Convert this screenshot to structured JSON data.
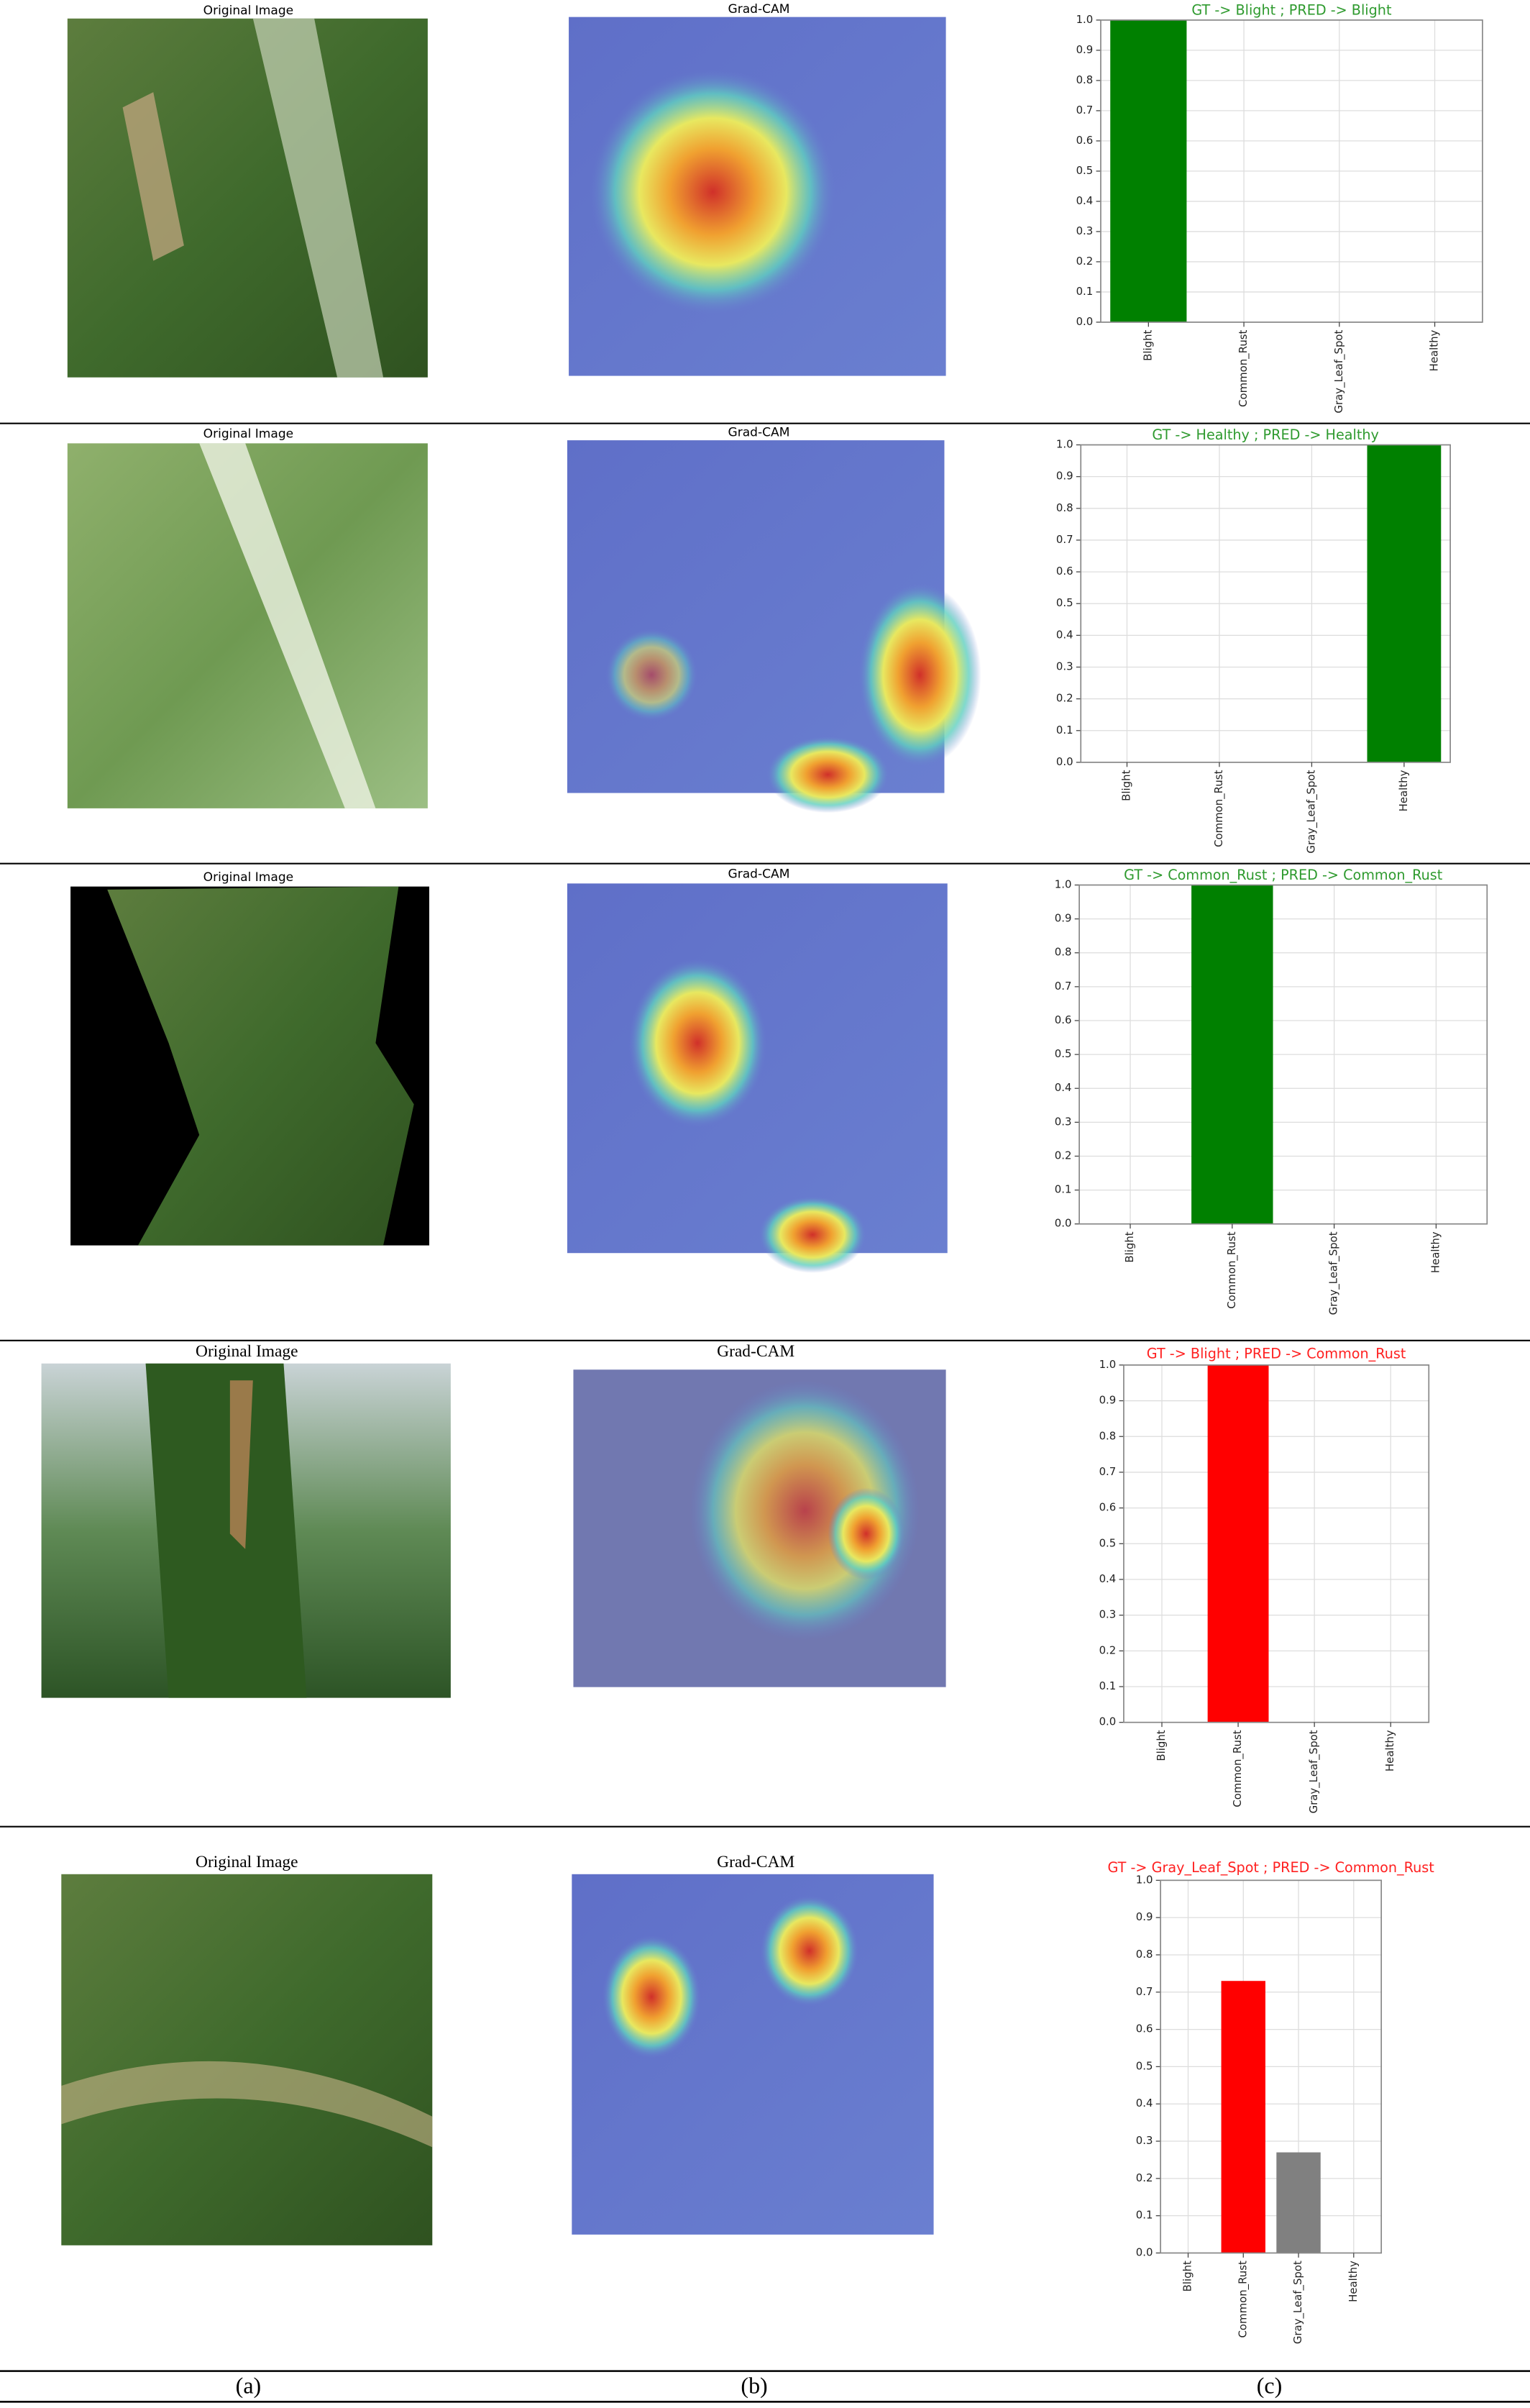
{
  "panels": [
    {
      "image_title": "Original Image",
      "cam_title": "Grad-CAM"
    },
    {
      "image_title": "Original Image",
      "cam_title": "Grad-CAM"
    },
    {
      "image_title": "Original Image",
      "cam_title": "Grad-CAM"
    },
    {
      "image_title": "Original Image",
      "cam_title": "Grad-CAM"
    },
    {
      "image_title": "Original Image",
      "cam_title": "Grad-CAM"
    }
  ],
  "captions": [
    "(a)",
    "(b)",
    "(c)"
  ],
  "chart_data": [
    {
      "type": "bar",
      "title": "GT -> Blight ; PRED -> Blight",
      "title_color": "#2e9a2e",
      "categories": [
        "Blight",
        "Common_Rust",
        "Gray_Leaf_Spot",
        "Healthy"
      ],
      "values": [
        1.0,
        0,
        0,
        0
      ],
      "colors": [
        "#008000",
        "#008000",
        "#008000",
        "#008000"
      ],
      "ylim": [
        0,
        1.0
      ],
      "yticks": [
        {
          "value": 0,
          "label": "0.0"
        },
        0.1,
        0.2,
        0.3,
        0.4,
        0.5,
        0.6,
        0.7,
        0.8,
        0.9,
        {
          "value": 1,
          "label": "1.0"
        }
      ],
      "grid": true
    },
    {
      "type": "bar",
      "title": "GT -> Healthy ; PRED -> Healthy",
      "title_color": "#2e9a2e",
      "categories": [
        "Blight",
        "Common_Rust",
        "Gray_Leaf_Spot",
        "Healthy"
      ],
      "values": [
        0,
        0,
        0,
        1.0
      ],
      "colors": [
        "#008000",
        "#008000",
        "#008000",
        "#008000"
      ],
      "ylim": [
        0,
        1.0
      ],
      "yticks": [
        {
          "value": 0,
          "label": "0.0"
        },
        0.1,
        0.2,
        0.3,
        0.4,
        0.5,
        0.6,
        0.7,
        0.8,
        0.9,
        {
          "value": 1,
          "label": "1.0"
        }
      ],
      "grid": true
    },
    {
      "type": "bar",
      "title": "GT -> Common_Rust ; PRED -> Common_Rust",
      "title_color": "#2e9a2e",
      "categories": [
        "Blight",
        "Common_Rust",
        "Gray_Leaf_Spot",
        "Healthy"
      ],
      "values": [
        0,
        1.0,
        0,
        0
      ],
      "colors": [
        "#008000",
        "#008000",
        "#008000",
        "#008000"
      ],
      "ylim": [
        0,
        1.0
      ],
      "yticks": [
        {
          "value": 0,
          "label": "0.0"
        },
        0.1,
        0.2,
        0.3,
        0.4,
        0.5,
        0.6,
        0.7,
        0.8,
        0.9,
        {
          "value": 1,
          "label": "1.0"
        }
      ],
      "grid": true
    },
    {
      "type": "bar",
      "title": "GT -> Blight ; PRED -> Common_Rust",
      "title_color": "#ff2020",
      "categories": [
        "Blight",
        "Common_Rust",
        "Gray_Leaf_Spot",
        "Healthy"
      ],
      "values": [
        0,
        1.0,
        0,
        0
      ],
      "colors": [
        "#ff0000",
        "#ff0000",
        "#ff0000",
        "#ff0000"
      ],
      "ylim": [
        0,
        1.0
      ],
      "yticks": [
        {
          "value": 0,
          "label": "0.0"
        },
        0.1,
        0.2,
        0.3,
        0.4,
        0.5,
        0.6,
        0.7,
        0.8,
        0.9,
        {
          "value": 1,
          "label": "1.0"
        }
      ],
      "grid": true
    },
    {
      "type": "bar",
      "title": "GT -> Gray_Leaf_Spot ; PRED -> Common_Rust",
      "title_color": "#ff2020",
      "categories": [
        "Blight",
        "Common_Rust",
        "Gray_Leaf_Spot",
        "Healthy"
      ],
      "values": [
        0,
        0.73,
        0.27,
        0
      ],
      "colors": [
        "#ff0000",
        "#ff0000",
        "#808080",
        "#808080"
      ],
      "ylim": [
        0,
        1.0
      ],
      "yticks": [
        {
          "value": 0,
          "label": "0.0"
        },
        0.1,
        0.2,
        0.3,
        0.4,
        0.5,
        0.6,
        0.7,
        0.8,
        0.9,
        {
          "value": 1,
          "label": "1.0"
        }
      ],
      "grid": true
    }
  ]
}
